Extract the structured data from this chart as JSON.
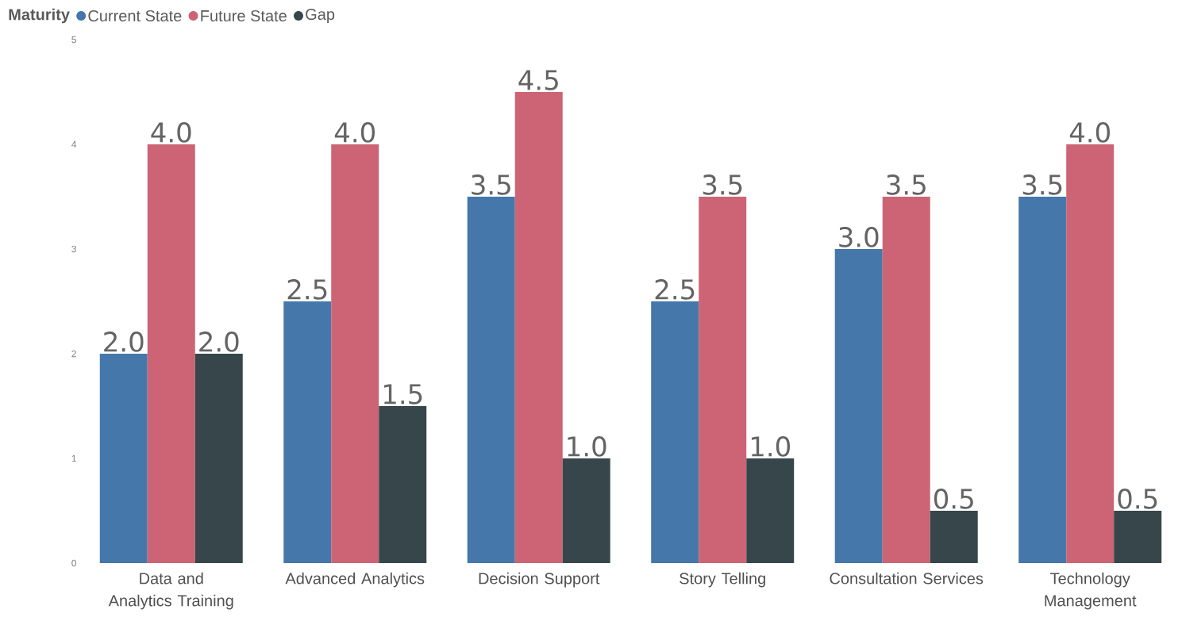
{
  "chart_data": {
    "type": "bar",
    "legend_title": "Maturity",
    "legend": "top left",
    "categories": [
      "Data and Analytics Training",
      "Advanced Analytics",
      "Decision Support",
      "Story Telling",
      "Consultation Services",
      "Technology Management"
    ],
    "series": [
      {
        "name": "Current State",
        "color": "#4577aa",
        "values": [
          2,
          2.5,
          3.5,
          2.5,
          3,
          3.5
        ],
        "value_labels": [
          "2.0",
          "2.5",
          "3.5",
          "2.5",
          "3.0",
          "3.5"
        ]
      },
      {
        "name": "Future State",
        "color": "#cc6475",
        "values": [
          4,
          4,
          4.5,
          3.5,
          3.5,
          4
        ],
        "value_labels": [
          "4.0",
          "4.0",
          "4.5",
          "3.5",
          "3.5",
          "4.0"
        ]
      },
      {
        "name": "Gap",
        "color": "#37464a",
        "values": [
          2,
          1.5,
          1,
          1,
          0.5,
          0.5
        ],
        "value_labels": [
          "2.0",
          "1.5",
          "1.0",
          "1.0",
          "0.5",
          "0.5"
        ]
      }
    ],
    "ylim": [
      0,
      5
    ],
    "yticks": [
      0,
      1,
      2,
      3,
      4,
      5
    ],
    "grid": false
  }
}
